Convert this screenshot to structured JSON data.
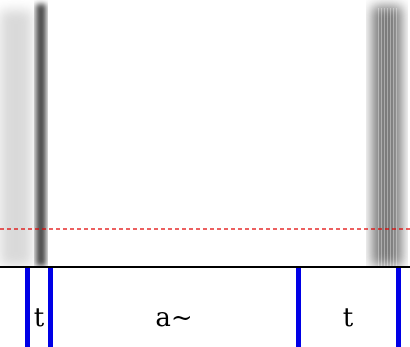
{
  "segmentation": {
    "labels": [
      "t",
      "a~",
      "t"
    ]
  },
  "colors": {
    "boundary": "#0000e6",
    "reference_line": "#e00000",
    "tier_divider": "#000000",
    "background": "#ffffff"
  }
}
